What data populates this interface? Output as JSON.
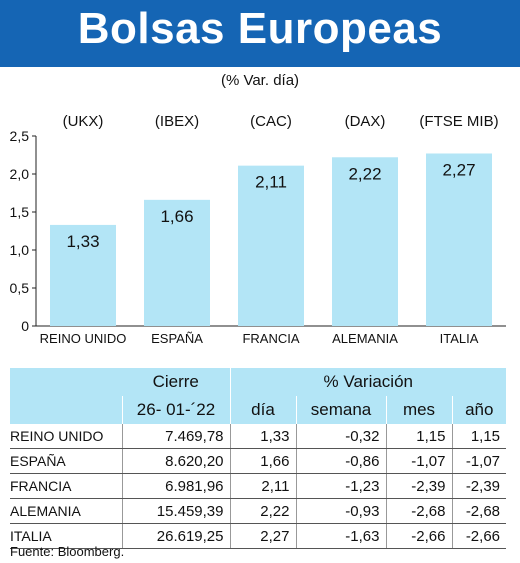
{
  "header": {
    "title": "Bolsas Europeas",
    "subtitle": "(% Var. día)"
  },
  "chart_data": {
    "type": "bar",
    "categories": [
      "REINO UNIDO",
      "ESPAÑA",
      "FRANCIA",
      "ALEMANIA",
      "ITALIA"
    ],
    "index_labels": [
      "(UKX)",
      "(IBEX)",
      "(CAC)",
      "(DAX)",
      "(FTSE MIB)"
    ],
    "values": [
      1.33,
      1.66,
      2.11,
      2.22,
      2.27
    ],
    "value_labels": [
      "1,33",
      "1,66",
      "2,11",
      "2,22",
      "2,27"
    ],
    "ylim": [
      0,
      2.5
    ],
    "yticks": [
      0,
      0.5,
      1.0,
      1.5,
      2.0,
      2.5
    ],
    "ytick_labels": [
      "0",
      "0,5",
      "1,0",
      "1,5",
      "2,0",
      "2,5"
    ],
    "bar_color": "#b3e5f6",
    "title": "",
    "xlabel": "",
    "ylabel": ""
  },
  "table": {
    "group_headers": {
      "close": "Cierre",
      "variation": "% Variación"
    },
    "columns": [
      "26- 01-´22",
      "día",
      "semana",
      "mes",
      "año"
    ],
    "rows": [
      {
        "name": "REINO UNIDO",
        "close": "7.469,78",
        "day": "1,33",
        "week": "-0,32",
        "month": "1,15",
        "year": "1,15"
      },
      {
        "name": "ESPAÑA",
        "close": "8.620,20",
        "day": "1,66",
        "week": "-0,86",
        "month": "-1,07",
        "year": "-1,07"
      },
      {
        "name": "FRANCIA",
        "close": "6.981,96",
        "day": "2,11",
        "week": "-1,23",
        "month": "-2,39",
        "year": "-2,39"
      },
      {
        "name": "ALEMANIA",
        "close": "15.459,39",
        "day": "2,22",
        "week": "-0,93",
        "month": "-2,68",
        "year": "-2,68"
      },
      {
        "name": "ITALIA",
        "close": "26.619,25",
        "day": "2,27",
        "week": "-1,63",
        "month": "-2,66",
        "year": "-2,66"
      }
    ],
    "header_color": "#b3e5f6"
  },
  "footer": {
    "source": "Fuente: Bloomberg."
  },
  "colors": {
    "banner": "#1565b4"
  }
}
